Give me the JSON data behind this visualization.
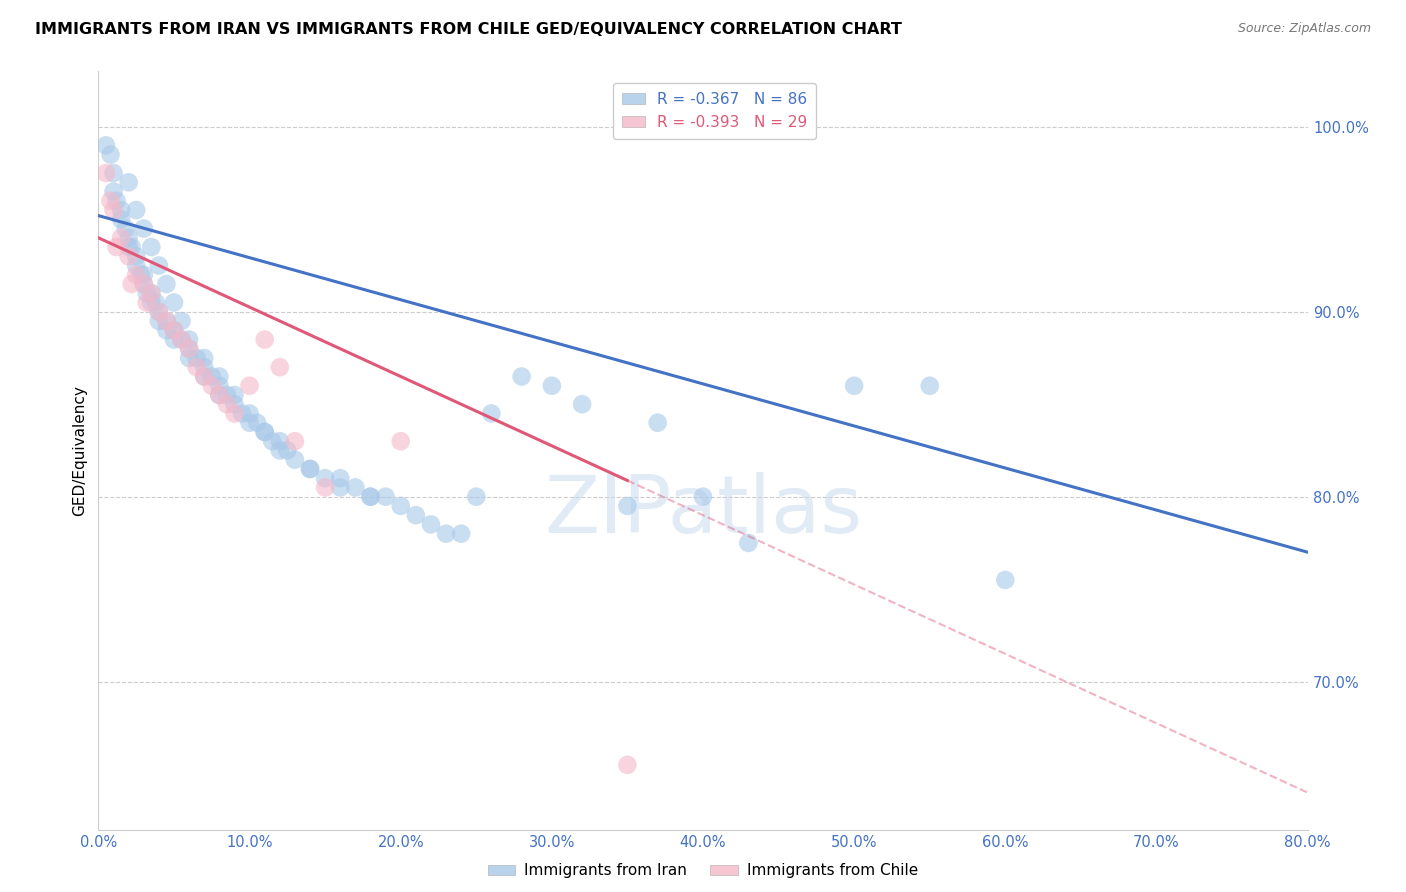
{
  "title": "IMMIGRANTS FROM IRAN VS IMMIGRANTS FROM CHILE GED/EQUIVALENCY CORRELATION CHART",
  "source": "Source: ZipAtlas.com",
  "ylabel": "GED/Equivalency",
  "ytick_vals": [
    70,
    80,
    90,
    100
  ],
  "xtick_vals": [
    0,
    10,
    20,
    30,
    40,
    50,
    60,
    70,
    80
  ],
  "xlim": [
    0,
    80
  ],
  "ylim": [
    62,
    103
  ],
  "legend_iran": "Immigrants from Iran",
  "legend_chile": "Immigrants from Chile",
  "r_iran": "-0.367",
  "n_iran": "86",
  "r_chile": "-0.393",
  "n_chile": "29",
  "color_iran": "#a8c8e8",
  "color_chile": "#f4b8c8",
  "line_color_iran": "#4472c4",
  "line_color_chile": "#e05878",
  "watermark": "ZIPatlas",
  "iran_trend_x0": 0,
  "iran_trend_y0": 95.2,
  "iran_trend_x1": 80,
  "iran_trend_y1": 77.0,
  "chile_trend_x0": 0,
  "chile_trend_y0": 94.0,
  "chile_trend_x1": 80,
  "chile_trend_y1": 64.0,
  "chile_solid_end": 35,
  "iran_x": [
    0.5,
    0.8,
    1.0,
    1.0,
    1.2,
    1.5,
    1.5,
    1.8,
    2.0,
    2.0,
    2.2,
    2.5,
    2.5,
    2.8,
    3.0,
    3.0,
    3.2,
    3.5,
    3.5,
    3.8,
    4.0,
    4.0,
    4.5,
    4.5,
    5.0,
    5.0,
    5.5,
    6.0,
    6.0,
    6.5,
    7.0,
    7.0,
    7.5,
    8.0,
    8.0,
    8.5,
    9.0,
    9.5,
    10.0,
    10.5,
    11.0,
    11.5,
    12.0,
    12.5,
    13.0,
    14.0,
    15.0,
    16.0,
    17.0,
    18.0,
    19.0,
    20.0,
    21.0,
    22.0,
    23.0,
    24.0,
    25.0,
    26.0,
    28.0,
    30.0,
    32.0,
    35.0,
    37.0,
    40.0,
    43.0,
    50.0,
    55.0,
    60.0,
    2.0,
    2.5,
    3.0,
    3.5,
    4.0,
    4.5,
    5.0,
    5.5,
    6.0,
    7.0,
    8.0,
    9.0,
    10.0,
    11.0,
    12.0,
    14.0,
    16.0,
    18.0
  ],
  "iran_y": [
    99.0,
    98.5,
    97.5,
    96.5,
    96.0,
    95.5,
    95.0,
    94.5,
    94.0,
    93.5,
    93.5,
    93.0,
    92.5,
    92.0,
    92.0,
    91.5,
    91.0,
    91.0,
    90.5,
    90.5,
    90.0,
    89.5,
    89.5,
    89.0,
    89.0,
    88.5,
    88.5,
    88.0,
    87.5,
    87.5,
    87.0,
    86.5,
    86.5,
    86.0,
    85.5,
    85.5,
    85.0,
    84.5,
    84.0,
    84.0,
    83.5,
    83.0,
    83.0,
    82.5,
    82.0,
    81.5,
    81.0,
    81.0,
    80.5,
    80.0,
    80.0,
    79.5,
    79.0,
    78.5,
    78.0,
    78.0,
    80.0,
    84.5,
    86.5,
    86.0,
    85.0,
    79.5,
    84.0,
    80.0,
    77.5,
    86.0,
    86.0,
    75.5,
    97.0,
    95.5,
    94.5,
    93.5,
    92.5,
    91.5,
    90.5,
    89.5,
    88.5,
    87.5,
    86.5,
    85.5,
    84.5,
    83.5,
    82.5,
    81.5,
    80.5,
    80.0
  ],
  "chile_x": [
    0.5,
    0.8,
    1.0,
    1.5,
    2.0,
    2.5,
    3.0,
    3.5,
    4.0,
    4.5,
    5.0,
    5.5,
    6.0,
    6.5,
    7.0,
    7.5,
    8.0,
    8.5,
    9.0,
    10.0,
    11.0,
    12.0,
    13.0,
    15.0,
    20.0,
    35.0,
    1.2,
    2.2,
    3.2
  ],
  "chile_y": [
    97.5,
    96.0,
    95.5,
    94.0,
    93.0,
    92.0,
    91.5,
    91.0,
    90.0,
    89.5,
    89.0,
    88.5,
    88.0,
    87.0,
    86.5,
    86.0,
    85.5,
    85.0,
    84.5,
    86.0,
    88.5,
    87.0,
    83.0,
    80.5,
    83.0,
    65.5,
    93.5,
    91.5,
    90.5
  ]
}
